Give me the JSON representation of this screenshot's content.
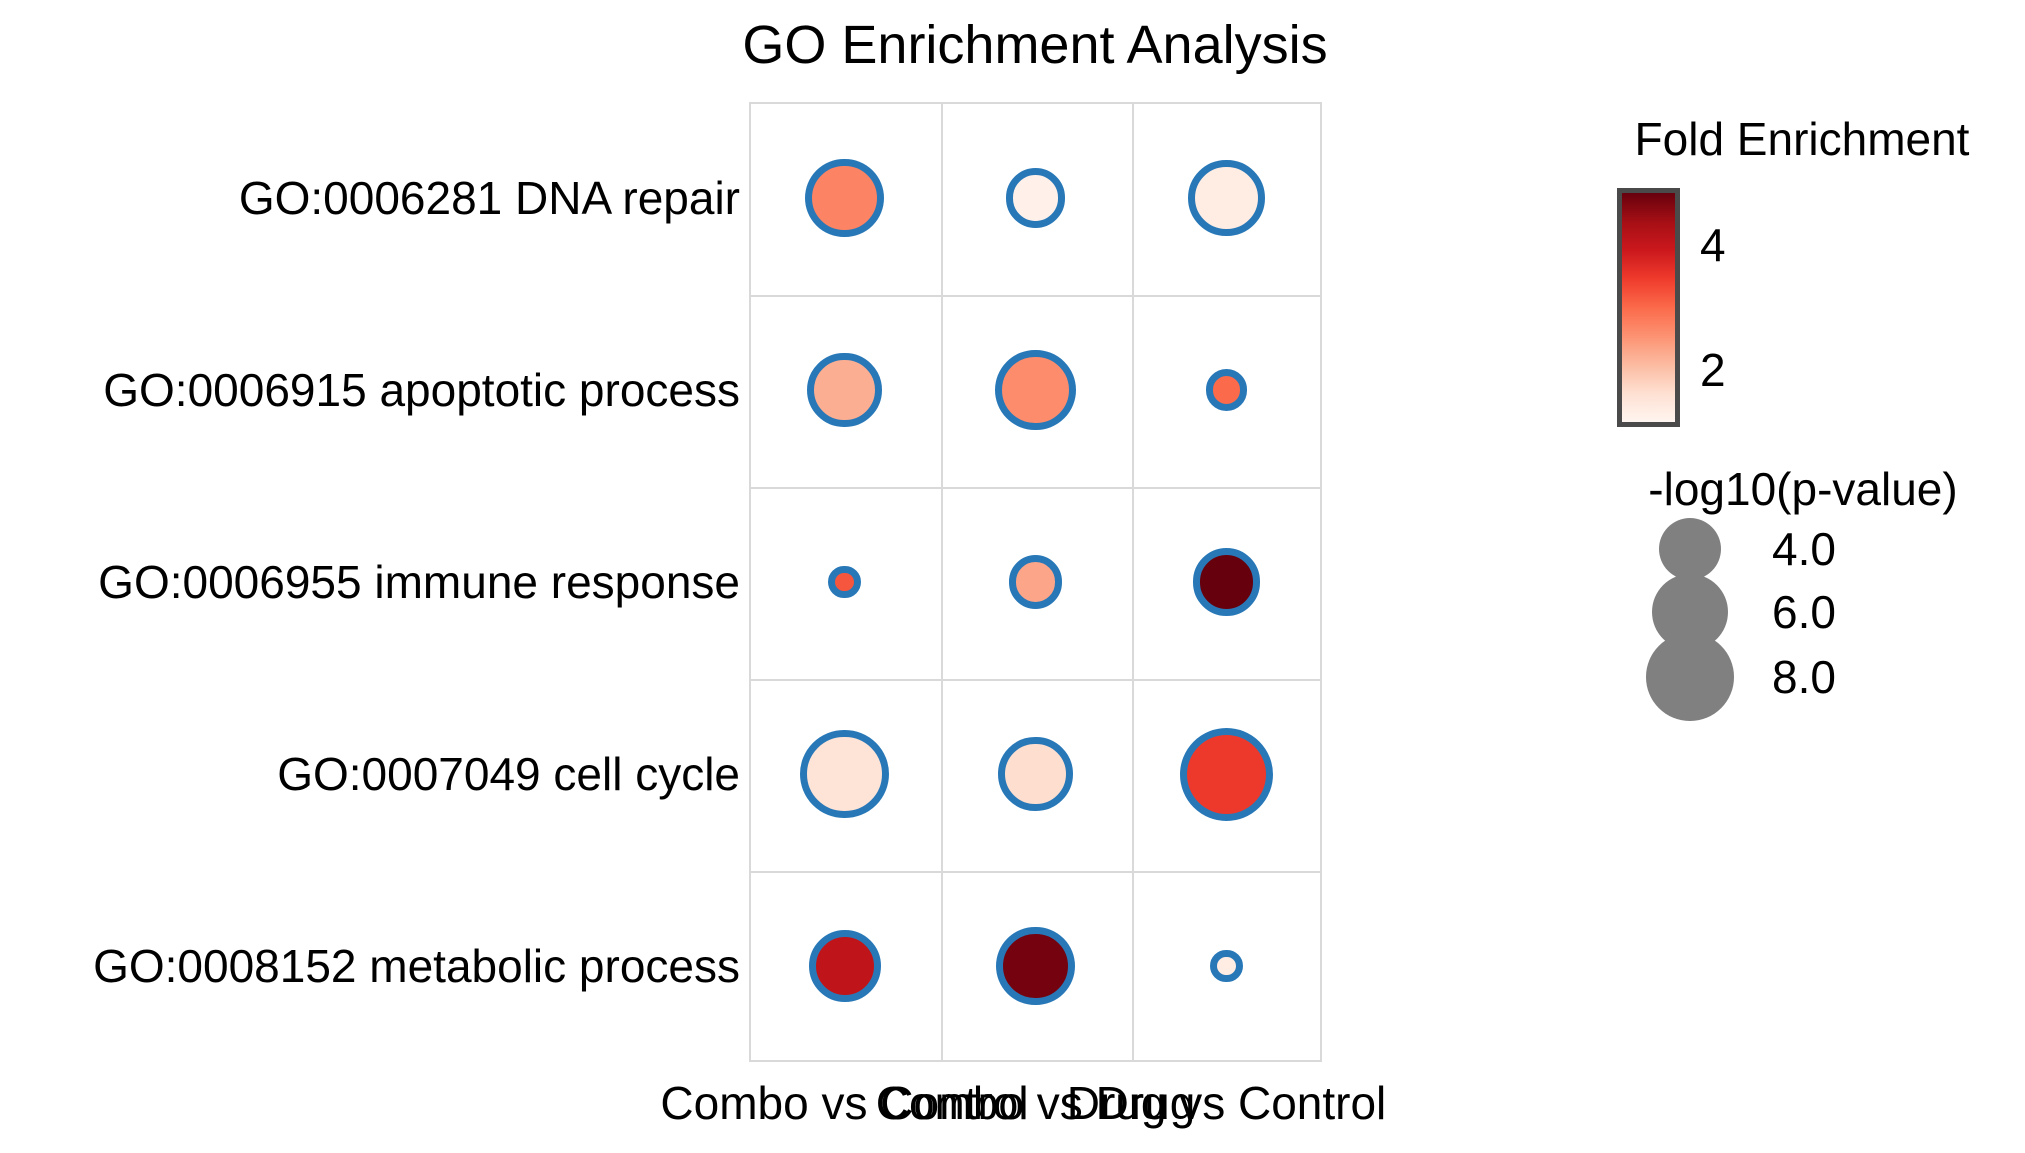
{
  "title": "GO Enrichment Analysis",
  "chart_data": {
    "type": "scatter",
    "subtype": "dot-plot-bubble-matrix",
    "title": "GO Enrichment Analysis",
    "x_categories": [
      "Combo vs Control",
      "Combo vs Drug",
      "Drug vs Control"
    ],
    "y_categories": [
      "GO:0006281 DNA repair",
      "GO:0006915 apoptotic process",
      "GO:0006955 immune response",
      "GO:0007049 cell cycle",
      "GO:0008152 metabolic process"
    ],
    "points": [
      {
        "x": "Combo vs Control",
        "y": "GO:0006281 DNA repair",
        "fold_enrichment": 2.7,
        "neg_log10_pvalue": 6.4
      },
      {
        "x": "Combo vs Drug",
        "y": "GO:0006281 DNA repair",
        "fold_enrichment": 1.2,
        "neg_log10_pvalue": 3.7
      },
      {
        "x": "Drug vs Control",
        "y": "GO:0006281 DNA repair",
        "fold_enrichment": 1.3,
        "neg_log10_pvalue": 6.1
      },
      {
        "x": "Combo vs Control",
        "y": "GO:0006915 apoptotic process",
        "fold_enrichment": 2.2,
        "neg_log10_pvalue": 5.8
      },
      {
        "x": "Combo vs Drug",
        "y": "GO:0006915 apoptotic process",
        "fold_enrichment": 2.6,
        "neg_log10_pvalue": 6.8
      },
      {
        "x": "Drug vs Control",
        "y": "GO:0006915 apoptotic process",
        "fold_enrichment": 3.0,
        "neg_log10_pvalue": 1.8
      },
      {
        "x": "Combo vs Control",
        "y": "GO:0006955 immune response",
        "fold_enrichment": 3.2,
        "neg_log10_pvalue": 1.1
      },
      {
        "x": "Combo vs Drug",
        "y": "GO:0006955 immune response",
        "fold_enrichment": 2.3,
        "neg_log10_pvalue": 3.0
      },
      {
        "x": "Drug vs Control",
        "y": "GO:0006955 immune response",
        "fold_enrichment": 4.9,
        "neg_log10_pvalue": 4.8
      },
      {
        "x": "Combo vs Control",
        "y": "GO:0007049 cell cycle",
        "fold_enrichment": 1.5,
        "neg_log10_pvalue": 8.2
      },
      {
        "x": "Combo vs Drug",
        "y": "GO:0007049 cell cycle",
        "fold_enrichment": 1.6,
        "neg_log10_pvalue": 5.8
      },
      {
        "x": "Drug vs Control",
        "y": "GO:0007049 cell cycle",
        "fold_enrichment": 3.5,
        "neg_log10_pvalue": 9.0
      },
      {
        "x": "Combo vs Control",
        "y": "GO:0008152 metabolic process",
        "fold_enrichment": 4.1,
        "neg_log10_pvalue": 5.4
      },
      {
        "x": "Combo vs Drug",
        "y": "GO:0008152 metabolic process",
        "fold_enrichment": 4.8,
        "neg_log10_pvalue": 6.4
      },
      {
        "x": "Drug vs Control",
        "y": "GO:0008152 metabolic process",
        "fold_enrichment": 1.3,
        "neg_log10_pvalue": 1.1
      }
    ],
    "color_legend": {
      "title": "Fold Enrichment",
      "tick_labels": [
        "4",
        "2"
      ],
      "tick_values": [
        4,
        2
      ],
      "vmin": 1.1,
      "vmax": 4.9,
      "colormap": "Reds",
      "colormap_stops": [
        [
          0.0,
          "#fff5f0"
        ],
        [
          0.125,
          "#fee0d2"
        ],
        [
          0.25,
          "#fcbba1"
        ],
        [
          0.375,
          "#fc9272"
        ],
        [
          0.5,
          "#fb6a4a"
        ],
        [
          0.625,
          "#ef3b2c"
        ],
        [
          0.75,
          "#cb181d"
        ],
        [
          0.875,
          "#a50f15"
        ],
        [
          1.0,
          "#67000d"
        ]
      ]
    },
    "size_legend": {
      "title": "-log10(p-value)",
      "entry_labels": [
        "4.0",
        "6.0",
        "8.0"
      ],
      "entry_values": [
        4.0,
        6.0,
        8.0
      ],
      "swatch_color": "#808080"
    },
    "marker_edge_color": "#2878b8",
    "grid": true,
    "grid_color": "#d9d9d9",
    "legend_position": "right"
  }
}
